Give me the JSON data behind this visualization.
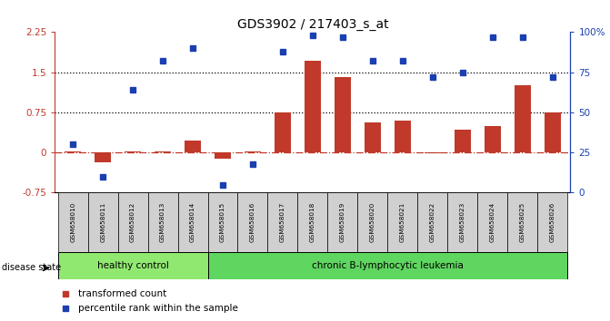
{
  "title": "GDS3902 / 217403_s_at",
  "samples": [
    "GSM658010",
    "GSM658011",
    "GSM658012",
    "GSM658013",
    "GSM658014",
    "GSM658015",
    "GSM658016",
    "GSM658017",
    "GSM658018",
    "GSM658019",
    "GSM658020",
    "GSM658021",
    "GSM658022",
    "GSM658023",
    "GSM658024",
    "GSM658025",
    "GSM658026"
  ],
  "transformed_count": [
    0.02,
    -0.18,
    0.02,
    0.02,
    0.22,
    -0.12,
    0.02,
    0.75,
    1.72,
    1.41,
    0.57,
    0.6,
    -0.02,
    0.42,
    0.5,
    1.25,
    0.75
  ],
  "percentile_rank_pct": [
    30,
    10,
    64,
    82,
    90,
    5,
    18,
    88,
    98,
    97,
    82,
    82,
    72,
    75,
    97,
    97,
    72
  ],
  "ylim_left": [
    -0.75,
    2.25
  ],
  "ylim_right": [
    0,
    100
  ],
  "yticks_left": [
    -0.75,
    0.0,
    0.75,
    1.5,
    2.25
  ],
  "ytick_labels_left": [
    "-0.75",
    "0",
    "0.75",
    "1.5",
    "2.25"
  ],
  "hlines": [
    0.75,
    1.5
  ],
  "bar_color": "#c0392b",
  "dot_color": "#1a3fb0",
  "healthy_bg": "#90e870",
  "leukemia_bg": "#5fd65f",
  "zero_line_color": "#c0392b",
  "healthy_label": "healthy control",
  "leukemia_label": "chronic B-lymphocytic leukemia",
  "disease_label": "disease state",
  "legend_bar": "transformed count",
  "legend_dot": "percentile rank within the sample",
  "n_healthy": 5,
  "n_total": 17
}
